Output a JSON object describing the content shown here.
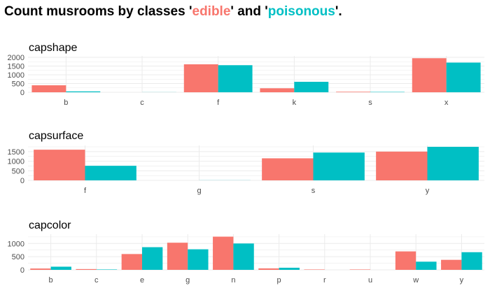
{
  "title": {
    "prefix": "Count musrooms by classes '",
    "edible": "edible",
    "middle": "' and '",
    "poisonous": "poisonous",
    "suffix": "'."
  },
  "colors": {
    "edible": "#F8766D",
    "poisonous": "#00BFC4",
    "grid": "#ebebeb"
  },
  "chart_data": [
    {
      "type": "bar",
      "title": "capshape",
      "categories": [
        "b",
        "c",
        "f",
        "k",
        "s",
        "x"
      ],
      "series": [
        {
          "name": "edible",
          "values": [
            400,
            0,
            1600,
            230,
            30,
            1950
          ]
        },
        {
          "name": "poisonous",
          "values": [
            50,
            5,
            1550,
            600,
            20,
            1700
          ]
        }
      ],
      "yticks": [
        0,
        500,
        1000,
        1500,
        2000
      ],
      "ylim": [
        0,
        2000
      ],
      "grid": true
    },
    {
      "type": "bar",
      "title": "capsurface",
      "categories": [
        "f",
        "g",
        "s",
        "y"
      ],
      "series": [
        {
          "name": "edible",
          "values": [
            1600,
            0,
            1150,
            1500
          ]
        },
        {
          "name": "poisonous",
          "values": [
            760,
            5,
            1450,
            1750
          ]
        }
      ],
      "yticks": [
        0,
        500,
        1000,
        1500
      ],
      "ylim": [
        0,
        1750
      ],
      "grid": true
    },
    {
      "type": "bar",
      "title": "capcolor",
      "categories": [
        "b",
        "c",
        "e",
        "g",
        "n",
        "p",
        "r",
        "u",
        "w",
        "y"
      ],
      "series": [
        {
          "name": "edible",
          "values": [
            50,
            30,
            600,
            1030,
            1260,
            55,
            15,
            15,
            700,
            380
          ]
        },
        {
          "name": "poisonous",
          "values": [
            120,
            15,
            860,
            780,
            1000,
            80,
            0,
            0,
            310,
            670
          ]
        }
      ],
      "yticks": [
        0,
        500,
        1000
      ],
      "ylim": [
        0,
        1300
      ],
      "grid": true
    }
  ]
}
